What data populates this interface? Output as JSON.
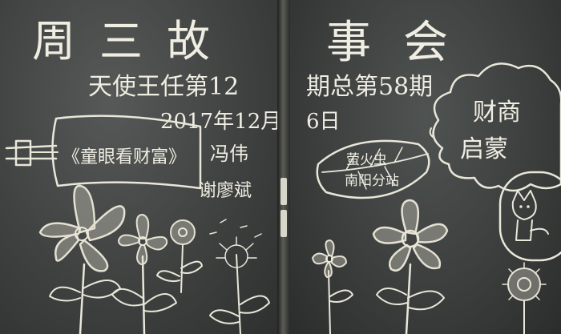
{
  "left_board": {
    "title_part1": "周三故",
    "line1": "天使王任第12",
    "line2": "2017年12月",
    "book_title": "《童眼看财富》",
    "author": "冯伟",
    "author2": "谢廖斌"
  },
  "right_board": {
    "title_part2": "事会",
    "line1": "期总第58期",
    "line2": "6日",
    "leaf_text_1": "萤火虫",
    "leaf_text_2": "南阳分站",
    "cloud_text_1": "财商",
    "cloud_text_2": "启蒙"
  },
  "colors": {
    "chalkboard": "#3f4240",
    "chalk": "#e9e6da"
  }
}
